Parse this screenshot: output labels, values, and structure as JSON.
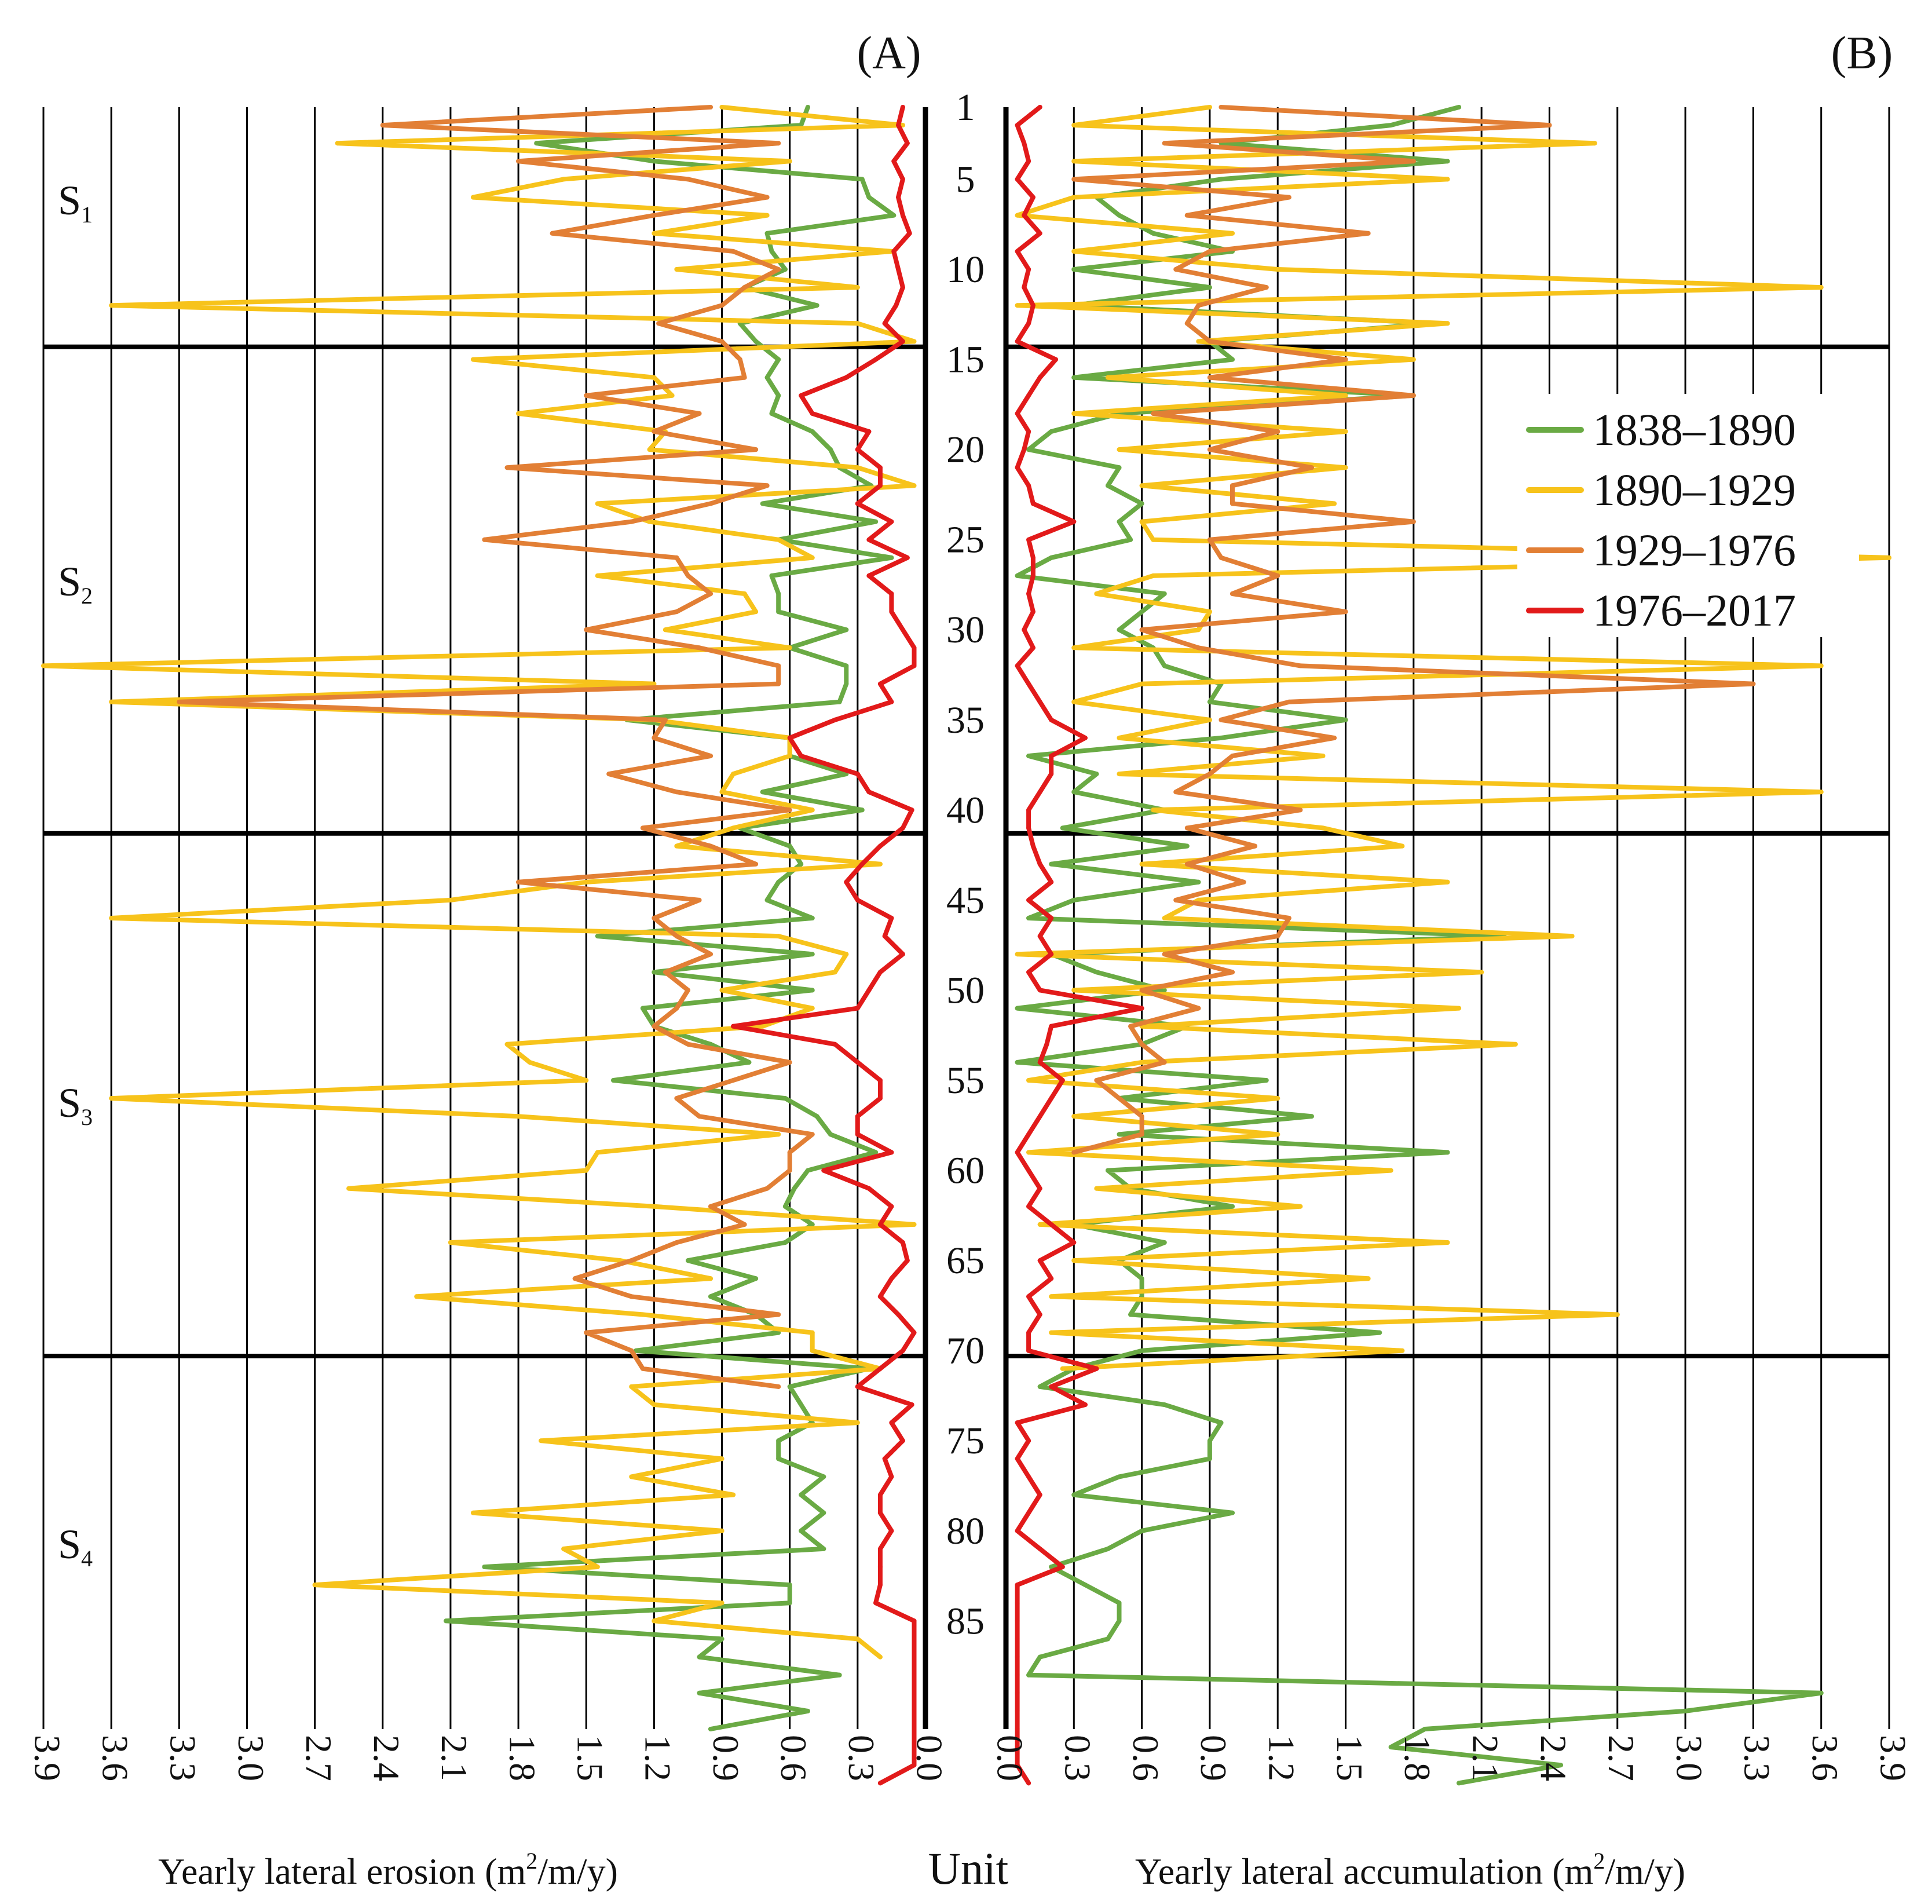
{
  "chart_data": [
    {
      "panel_label": "(A)",
      "type": "line",
      "orientation": "horizontal-values-vertical-units",
      "xlabel": "Yearly lateral erosion (m²/m/y)",
      "xlabel_parts": {
        "before": "Yearly lateral erosion (m",
        "sup": "2",
        "after": "/m/y)"
      },
      "xlim": [
        0,
        3.9
      ],
      "x_direction": "reversed",
      "x_ticks": [
        "0.0",
        "0.3",
        "0.6",
        "0.9",
        "1.2",
        "1.5",
        "1.8",
        "2.1",
        "2.4",
        "2.7",
        "3.0",
        "3.3",
        "3.6",
        "3.9"
      ],
      "series": [
        {
          "name": "1838–1890",
          "color": "#6aaa44",
          "values": [
            0.52,
            0.55,
            1.72,
            1.2,
            0.28,
            0.25,
            0.14,
            0.7,
            0.68,
            0.62,
            0.8,
            0.48,
            0.82,
            0.75,
            0.65,
            0.7,
            0.65,
            0.68,
            0.5,
            0.42,
            0.38,
            0.24,
            0.72,
            0.22,
            0.65,
            0.15,
            0.68,
            0.65,
            0.65,
            0.35,
            0.6,
            0.35,
            0.35,
            0.38,
            1.32,
            0.6,
            0.6,
            0.35,
            0.72,
            0.28,
            0.82,
            0.6,
            0.55,
            0.65,
            0.7,
            0.5,
            1.45,
            0.5,
            1.2,
            0.5,
            1.25,
            1.2,
            0.95,
            0.78,
            1.38,
            0.62,
            0.48,
            0.42,
            0.22,
            0.52,
            0.58,
            0.62,
            0.5,
            0.62,
            1.05,
            0.75,
            0.95,
            0.75,
            0.65,
            1.28,
            0.25,
            0.6,
            0.55,
            0.5,
            0.65,
            0.65,
            0.45,
            0.55,
            0.45,
            0.55,
            0.45,
            1.95,
            0.6,
            0.6,
            2.12,
            0.9,
            1.0,
            0.38,
            1.0,
            0.52,
            0.95
          ]
        },
        {
          "name": "1890–1929",
          "color": "#f7c31b",
          "values": [
            0.9,
            0.1,
            2.6,
            0.6,
            1.6,
            2.0,
            0.7,
            1.2,
            0.15,
            1.1,
            0.3,
            3.6,
            0.3,
            0.05,
            2.0,
            1.2,
            1.12,
            1.8,
            1.15,
            1.22,
            0.3,
            0.05,
            1.45,
            1.22,
            0.65,
            0.5,
            1.45,
            0.8,
            0.75,
            1.15,
            0.6,
            3.9,
            1.2,
            3.6,
            1.2,
            0.6,
            0.6,
            0.85,
            0.9,
            0.5,
            0.85,
            1.1,
            0.2,
            1.5,
            2.1,
            3.6,
            0.65,
            0.35,
            0.4,
            0.9,
            0.5,
            0.72,
            1.85,
            1.75,
            1.5,
            3.6,
            1.8,
            0.65,
            1.45,
            1.5,
            2.55,
            1.2,
            0.05,
            2.1,
            1.35,
            0.95,
            2.25,
            1.25,
            0.5,
            0.5,
            0.2,
            1.3,
            1.2,
            0.3,
            1.7,
            0.9,
            1.3,
            0.85,
            2.0,
            0.9,
            1.6,
            1.45,
            2.7,
            0.9,
            1.2,
            0.3,
            0.2
          ]
        },
        {
          "name": "1929–1976",
          "color": "#e27f35",
          "values": [
            0.95,
            2.4,
            0.65,
            1.8,
            1.05,
            0.7,
            1.2,
            1.65,
            0.85,
            0.65,
            0.8,
            0.9,
            1.18,
            0.9,
            0.82,
            0.8,
            1.5,
            1.0,
            1.2,
            0.75,
            1.85,
            0.7,
            0.95,
            1.3,
            1.95,
            1.1,
            1.05,
            0.95,
            1.1,
            1.5,
            1.0,
            0.65,
            0.65,
            3.3,
            1.15,
            1.2,
            0.95,
            1.4,
            1.1,
            0.6,
            1.25,
            0.95,
            0.75,
            1.8,
            1.0,
            1.2,
            1.1,
            0.95,
            1.15,
            1.05,
            1.1,
            1.2,
            1.05,
            0.6,
            0.85,
            1.1,
            1.0,
            0.5,
            0.6,
            0.6,
            0.7,
            0.95,
            0.8,
            1.1,
            1.3,
            1.55,
            1.3,
            0.65,
            1.5,
            1.3,
            1.25,
            0.65
          ]
        },
        {
          "name": "1976–2017",
          "color": "#e21a1a",
          "values": [
            0.1,
            0.12,
            0.08,
            0.14,
            0.1,
            0.12,
            0.1,
            0.07,
            0.14,
            0.12,
            0.1,
            0.13,
            0.18,
            0.1,
            0.22,
            0.35,
            0.55,
            0.5,
            0.25,
            0.3,
            0.2,
            0.2,
            0.3,
            0.15,
            0.25,
            0.08,
            0.25,
            0.15,
            0.15,
            0.1,
            0.05,
            0.05,
            0.2,
            0.15,
            0.4,
            0.6,
            0.55,
            0.3,
            0.25,
            0.06,
            0.1,
            0.2,
            0.28,
            0.35,
            0.3,
            0.15,
            0.18,
            0.1,
            0.2,
            0.25,
            0.3,
            0.85,
            0.4,
            0.3,
            0.2,
            0.2,
            0.3,
            0.3,
            0.15,
            0.45,
            0.25,
            0.15,
            0.2,
            0.1,
            0.08,
            0.15,
            0.2,
            0.12,
            0.05,
            0.1,
            0.2,
            0.3,
            0.06,
            0.15,
            0.1,
            0.18,
            0.15,
            0.2,
            0.2,
            0.15,
            0.2,
            0.2,
            0.2,
            0.22,
            0.05,
            0.05,
            0.05,
            0.05,
            0.05,
            0.05,
            0.05,
            0.05,
            0.05,
            0.2
          ]
        }
      ]
    },
    {
      "panel_label": "(B)",
      "type": "line",
      "orientation": "horizontal-values-vertical-units",
      "xlabel": "Yearly lateral accumulation (m²/m/y)",
      "xlabel_parts": {
        "before": "Yearly lateral accumulation (m",
        "sup": "2",
        "after": "/m/y)"
      },
      "xlim": [
        0,
        3.9
      ],
      "x_direction": "normal",
      "x_ticks": [
        "0.0",
        "0.3",
        "0.6",
        "0.9",
        "1.2",
        "1.5",
        "1.8",
        "2.1",
        "2.4",
        "2.7",
        "3.0",
        "3.3",
        "3.6",
        "3.9"
      ],
      "series": [
        {
          "name": "1838–1890",
          "color": "#6aaa44",
          "values": [
            2.0,
            1.7,
            0.95,
            1.95,
            0.95,
            0.4,
            0.5,
            0.65,
            1.0,
            0.3,
            0.9,
            0.3,
            1.9,
            0.9,
            1.0,
            0.3,
            1.8,
            0.5,
            0.2,
            0.1,
            0.5,
            0.45,
            0.6,
            0.5,
            0.55,
            0.2,
            0.05,
            0.7,
            0.6,
            0.5,
            0.65,
            0.7,
            0.95,
            0.9,
            1.5,
            0.95,
            0.1,
            0.4,
            0.3,
            0.7,
            0.25,
            0.8,
            0.2,
            0.85,
            0.3,
            0.1,
            2.2,
            0.2,
            0.4,
            0.7,
            0.05,
            0.8,
            0.6,
            0.05,
            1.15,
            0.5,
            1.35,
            0.5,
            1.95,
            0.45,
            0.55,
            1.0,
            0.3,
            0.7,
            0.5,
            0.6,
            0.6,
            0.55,
            1.65,
            0.6,
            0.3,
            0.15,
            0.7,
            0.95,
            0.9,
            0.9,
            0.5,
            0.3,
            1.0,
            0.6,
            0.45,
            0.2,
            0.35,
            0.5,
            0.5,
            0.45,
            0.15,
            0.1,
            3.6,
            3.0,
            1.85,
            1.7,
            2.45,
            2.0
          ]
        },
        {
          "name": "1890–1929",
          "color": "#f7c31b",
          "values": [
            0.9,
            0.3,
            2.6,
            0.3,
            1.95,
            0.3,
            0.05,
            1.0,
            0.3,
            1.2,
            3.6,
            0.05,
            1.95,
            0.85,
            1.8,
            0.45,
            1.5,
            0.3,
            1.5,
            0.5,
            1.5,
            0.6,
            1.45,
            0.6,
            0.65,
            3.9,
            0.65,
            0.4,
            0.9,
            0.85,
            0.3,
            3.6,
            0.6,
            0.3,
            0.9,
            0.5,
            1.4,
            0.5,
            3.6,
            0.65,
            1.4,
            1.75,
            0.6,
            1.95,
            0.85,
            0.7,
            2.5,
            0.05,
            2.1,
            0.3,
            2.0,
            0.6,
            2.25,
            0.6,
            0.1,
            1.2,
            0.3,
            1.2,
            0.1,
            1.7,
            0.4,
            1.3,
            0.15,
            1.95,
            0.3,
            1.6,
            0.2,
            2.7,
            0.2,
            1.75,
            0.25
          ]
        },
        {
          "name": "1929–1976",
          "color": "#e27f35",
          "values": [
            0.95,
            2.4,
            0.7,
            1.8,
            0.3,
            1.25,
            0.8,
            1.6,
            0.9,
            0.75,
            1.15,
            0.85,
            0.8,
            0.9,
            1.5,
            0.9,
            1.8,
            0.65,
            1.2,
            0.9,
            1.35,
            1.0,
            1.0,
            1.8,
            0.9,
            0.95,
            1.2,
            1.0,
            1.5,
            0.6,
            0.85,
            1.3,
            3.3,
            1.25,
            0.95,
            1.45,
            1.0,
            0.9,
            0.75,
            1.3,
            0.8,
            1.1,
            0.8,
            1.05,
            0.75,
            1.25,
            1.2,
            0.7,
            1.0,
            0.6,
            0.85,
            0.55,
            0.6,
            0.7,
            0.4,
            0.5,
            0.6,
            0.6,
            0.3
          ]
        },
        {
          "name": "1976–2017",
          "color": "#e21a1a",
          "values": [
            0.15,
            0.05,
            0.08,
            0.1,
            0.05,
            0.12,
            0.08,
            0.15,
            0.05,
            0.1,
            0.08,
            0.12,
            0.1,
            0.05,
            0.22,
            0.15,
            0.1,
            0.05,
            0.1,
            0.08,
            0.05,
            0.1,
            0.12,
            0.3,
            0.1,
            0.12,
            0.12,
            0.1,
            0.12,
            0.08,
            0.12,
            0.05,
            0.1,
            0.15,
            0.2,
            0.35,
            0.2,
            0.2,
            0.15,
            0.1,
            0.1,
            0.12,
            0.15,
            0.2,
            0.1,
            0.2,
            0.15,
            0.2,
            0.1,
            0.15,
            0.6,
            0.2,
            0.18,
            0.15,
            0.25,
            0.2,
            0.15,
            0.1,
            0.05,
            0.1,
            0.15,
            0.1,
            0.2,
            0.3,
            0.15,
            0.2,
            0.1,
            0.15,
            0.1,
            0.1,
            0.4,
            0.2,
            0.35,
            0.05,
            0.1,
            0.05,
            0.1,
            0.15,
            0.1,
            0.05,
            0.15,
            0.25,
            0.05,
            0.05,
            0.05,
            0.05,
            0.05,
            0.05,
            0.05,
            0.05,
            0.05,
            0.05,
            0.05,
            0.1
          ]
        }
      ]
    }
  ],
  "unit_axis": {
    "label": "Unit",
    "ticks": [
      "1",
      "5",
      "10",
      "15",
      "20",
      "25",
      "30",
      "35",
      "40",
      "45",
      "50",
      "55",
      "60",
      "65",
      "70",
      "75",
      "80",
      "85"
    ],
    "tick_values": [
      1,
      5,
      10,
      15,
      20,
      25,
      30,
      35,
      40,
      45,
      50,
      55,
      60,
      65,
      70,
      75,
      80,
      85
    ],
    "range": [
      1,
      91
    ]
  },
  "sections": [
    {
      "base": "S",
      "sub": "1"
    },
    {
      "base": "S",
      "sub": "2"
    },
    {
      "base": "S",
      "sub": "3"
    },
    {
      "base": "S",
      "sub": "4"
    }
  ],
  "section_boundaries_units": [
    14.3,
    41.3,
    70.3
  ],
  "legend": {
    "placement": "top-right of panel B",
    "entries": [
      "1838–1890",
      "1890–1929",
      "1929–1976",
      "1976–2017"
    ]
  }
}
